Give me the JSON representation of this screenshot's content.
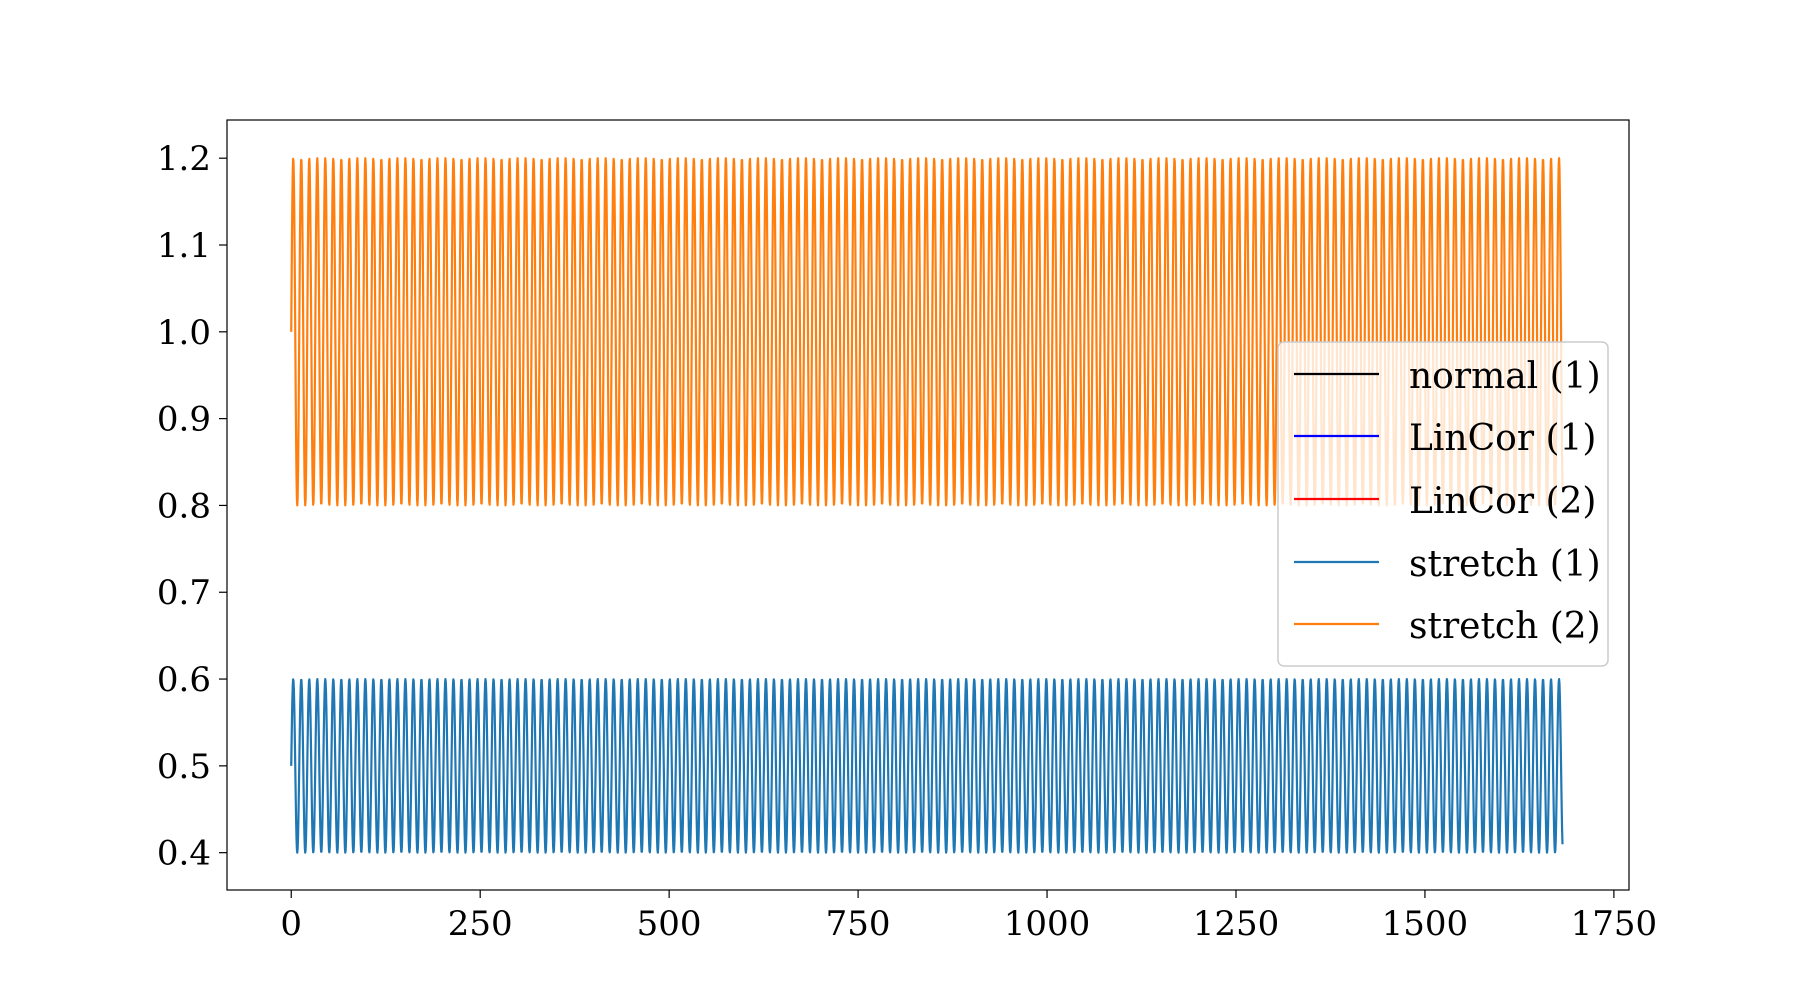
{
  "chart_data": {
    "type": "line",
    "title": "",
    "xlabel": "",
    "ylabel": "",
    "xlim": [
      -85,
      1770
    ],
    "ylim": [
      0.357,
      1.244
    ],
    "x_ticks": [
      0,
      250,
      500,
      750,
      1000,
      1250,
      1500,
      1750
    ],
    "x_tick_labels": [
      "0",
      "250",
      "500",
      "750",
      "1000",
      "1250",
      "1500",
      "1750"
    ],
    "y_ticks": [
      0.4,
      0.5,
      0.6,
      0.7,
      0.8,
      0.9,
      1.0,
      1.1,
      1.2
    ],
    "y_tick_labels": [
      "0.4",
      "0.5",
      "0.6",
      "0.7",
      "0.8",
      "0.9",
      "1.0",
      "1.1",
      "1.2"
    ],
    "grid": false,
    "legend_position": "center-right",
    "series": [
      {
        "name": "normal (1)",
        "color": "#000000",
        "x_range": [
          0,
          1682
        ],
        "center": 0.5,
        "amplitude": 0.1,
        "period": 10.6,
        "visible_in_plot": false
      },
      {
        "name": "LinCor (1)",
        "color": "#0000ff",
        "x_range": [
          0,
          1682
        ],
        "center": 0.5,
        "amplitude": 0.1,
        "period": 10.6,
        "visible_in_plot": false
      },
      {
        "name": "LinCor (2)",
        "color": "#ff0000",
        "x_range": [
          0,
          1682
        ],
        "center": 1.0,
        "amplitude": 0.2,
        "period": 10.6,
        "visible_in_plot": false
      },
      {
        "name": "stretch (1)",
        "color": "#1f77b4",
        "x_range": [
          0,
          1682
        ],
        "center": 0.5,
        "amplitude": 0.1,
        "period": 10.6,
        "visible_in_plot": true
      },
      {
        "name": "stretch (2)",
        "color": "#ff7f0e",
        "x_range": [
          0,
          1682
        ],
        "center": 1.0,
        "amplitude": 0.2,
        "period": 10.6,
        "visible_in_plot": true
      }
    ]
  }
}
